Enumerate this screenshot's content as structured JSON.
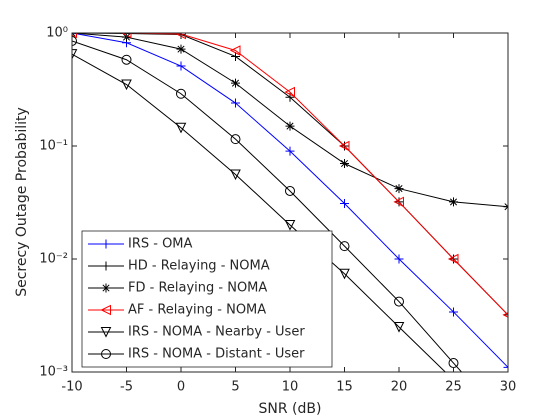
{
  "chart_data": {
    "type": "line",
    "xlabel": "SNR (dB)",
    "ylabel": "Secrecy Outage Probability",
    "x": [
      -10,
      -5,
      0,
      5,
      10,
      15,
      20,
      25,
      30
    ],
    "xlim": [
      -10,
      30
    ],
    "xticks": [
      -10,
      -5,
      0,
      5,
      10,
      15,
      20,
      25,
      30
    ],
    "ylim": [
      0.001,
      1
    ],
    "yscale": "log",
    "yticks": [
      {
        "value": 0.001,
        "label": "10⁻³"
      },
      {
        "value": 0.01,
        "label": "10⁻²"
      },
      {
        "value": 0.1,
        "label": "10⁻¹"
      },
      {
        "value": 1,
        "label": "10⁰"
      }
    ],
    "grid": false,
    "legend": "lower left",
    "series": [
      {
        "name": "IRS - OMA",
        "color": "#0000ff",
        "marker": "plus",
        "values": [
          1.0,
          0.82,
          0.51,
          0.24,
          0.09,
          0.031,
          0.01,
          0.0034,
          0.0011
        ]
      },
      {
        "name": "HD - Relaying - NOMA",
        "color": "#000000",
        "marker": "plus",
        "values": [
          1.0,
          0.99,
          0.97,
          0.62,
          0.27,
          0.1,
          0.032,
          0.01,
          0.0032
        ]
      },
      {
        "name": "FD - Relaying - NOMA",
        "color": "#000000",
        "marker": "star",
        "values": [
          1.0,
          0.92,
          0.72,
          0.36,
          0.15,
          0.07,
          0.042,
          0.032,
          0.029
        ]
      },
      {
        "name": "AF - Relaying - NOMA",
        "color": "#ff0000",
        "marker": "triangle-left",
        "values": [
          1.0,
          1.0,
          0.98,
          0.7,
          0.3,
          0.1,
          0.032,
          0.01,
          0.0032
        ]
      },
      {
        "name": "IRS - NOMA - Nearby - User",
        "color": "#000000",
        "marker": "triangle-down",
        "values": [
          0.65,
          0.35,
          0.145,
          0.056,
          0.02,
          0.0074,
          0.0025,
          0.00085,
          null
        ]
      },
      {
        "name": "IRS - NOMA - Distant - User",
        "color": "#000000",
        "marker": "circle",
        "values": [
          0.85,
          0.58,
          0.29,
          0.115,
          0.04,
          0.013,
          0.0042,
          0.0012,
          0.00035
        ]
      }
    ]
  }
}
